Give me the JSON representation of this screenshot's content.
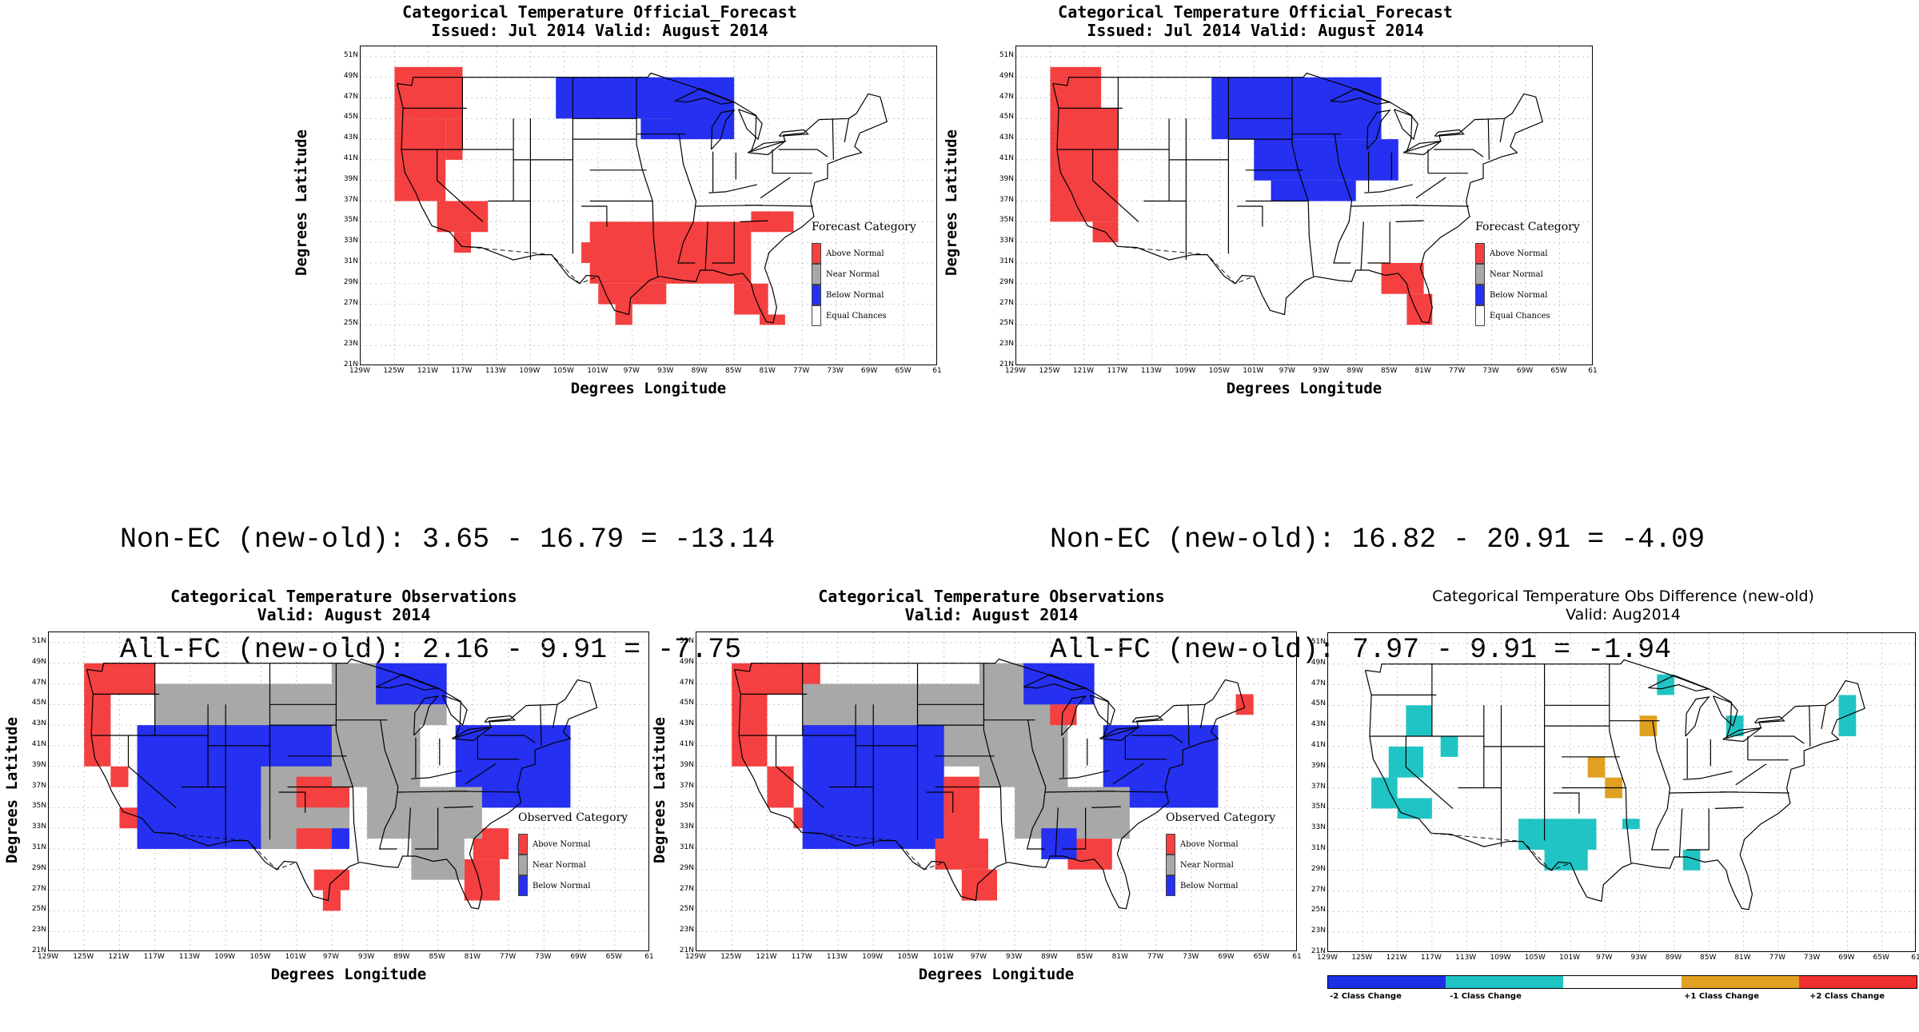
{
  "colors": {
    "above": "#f44040",
    "near": "#a8a8a8",
    "below": "#2530f0",
    "equal": "#ffffff",
    "minus2": "#1a30e6",
    "minus1": "#20c4c4",
    "plus1": "#e0a020",
    "plus2": "#f03030"
  },
  "axes": {
    "ylabel": "Degrees Latitude",
    "xlabel": "Degrees Longitude",
    "lat_ticks": [
      "51N",
      "49N",
      "47N",
      "45N",
      "43N",
      "41N",
      "39N",
      "37N",
      "35N",
      "33N",
      "31N",
      "29N",
      "27N",
      "25N",
      "23N",
      "21N"
    ],
    "lon_ticks": [
      "129W",
      "125W",
      "121W",
      "117W",
      "113W",
      "109W",
      "105W",
      "101W",
      "97W",
      "93W",
      "89W",
      "85W",
      "81W",
      "77W",
      "73W",
      "69W",
      "65W",
      "61"
    ]
  },
  "panels": {
    "forecast_old": {
      "title1": "Categorical Temperature Official_Forecast",
      "title2": "Issued: Jul 2014 Valid: August 2014",
      "legend_title": "Forecast Category",
      "legend": [
        "Above Normal",
        "Near Normal",
        "Below Normal",
        "Equal Chances"
      ]
    },
    "forecast_new": {
      "title1": "Categorical Temperature Official_Forecast",
      "title2": "Issued: Jul 2014 Valid: August 2014",
      "legend_title": "Forecast Category",
      "legend": [
        "Above Normal",
        "Near Normal",
        "Below Normal",
        "Equal Chances"
      ]
    },
    "obs_old": {
      "title1": "Categorical Temperature Observations",
      "title2": "Valid: August 2014",
      "legend_title": "Observed Category",
      "legend": [
        "Above Normal",
        "Near Normal",
        "Below Normal"
      ]
    },
    "obs_new": {
      "title1": "Categorical Temperature Observations",
      "title2": "Valid: August 2014",
      "legend_title": "Observed Category",
      "legend": [
        "Above Normal",
        "Near Normal",
        "Below Normal"
      ]
    },
    "obs_diff": {
      "title1": "Categorical Temperature Obs Difference (new-old)",
      "title2": "Valid: Aug2014",
      "colorbar": [
        "-2 Class Change",
        "-1 Class Change",
        "+1 Class Change",
        "+2 Class Change"
      ]
    }
  },
  "scores": {
    "left": {
      "line1": "Non-EC (new-old): 3.65 - 16.79 = -13.14",
      "line2": "All-FC (new-old): 2.16 - 9.91 = -7.75"
    },
    "right": {
      "line1": "Non-EC (new-old): 16.82 - 20.91 = -4.09",
      "line2": "All-FC (new-old): 7.97 - 9.91 = -1.94"
    }
  }
}
